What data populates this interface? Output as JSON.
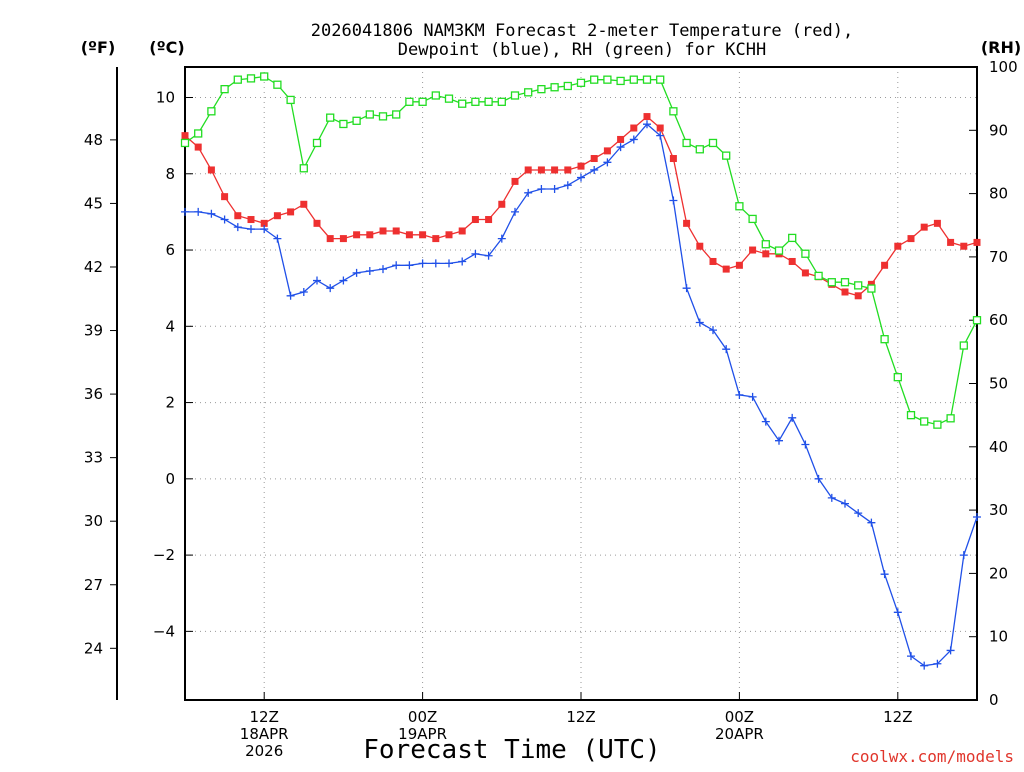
{
  "chart_data": {
    "type": "line",
    "title_lines": [
      "2026041806 NAM3KM Forecast 2-meter Temperature (red),",
      "Dewpoint (blue), RH (green) for KCHH"
    ],
    "xlabel": "Forecast Time (UTC)",
    "credit": "coolwx.com/models",
    "unit_labels": {
      "fahrenheit": "(ºF)",
      "celsius": "(ºC)",
      "rh": "(RH)"
    },
    "x_range_hours": [
      7,
      67
    ],
    "celsius_range": [
      -5.8,
      10.8
    ],
    "rh_range": [
      0,
      100
    ],
    "celsius_ticks": [
      {
        "value": 10,
        "label": "10"
      },
      {
        "value": 8,
        "label": "8"
      },
      {
        "value": 6,
        "label": "6"
      },
      {
        "value": 4,
        "label": "4"
      },
      {
        "value": 2,
        "label": "2"
      },
      {
        "value": 0,
        "label": "0"
      },
      {
        "value": -2,
        "label": "−2"
      },
      {
        "value": -4,
        "label": "−4"
      }
    ],
    "fahrenheit_ticks": [
      {
        "value": 48,
        "label": "48"
      },
      {
        "value": 45,
        "label": "45"
      },
      {
        "value": 42,
        "label": "42"
      },
      {
        "value": 39,
        "label": "39"
      },
      {
        "value": 36,
        "label": "36"
      },
      {
        "value": 33,
        "label": "33"
      },
      {
        "value": 30,
        "label": "30"
      },
      {
        "value": 27,
        "label": "27"
      },
      {
        "value": 24,
        "label": "24"
      }
    ],
    "rh_ticks": [
      {
        "value": 100,
        "label": "100"
      },
      {
        "value": 90,
        "label": "90"
      },
      {
        "value": 80,
        "label": "80"
      },
      {
        "value": 70,
        "label": "70"
      },
      {
        "value": 60,
        "label": "60"
      },
      {
        "value": 50,
        "label": "50"
      },
      {
        "value": 40,
        "label": "40"
      },
      {
        "value": 30,
        "label": "30"
      },
      {
        "value": 20,
        "label": "20"
      },
      {
        "value": 10,
        "label": "10"
      },
      {
        "value": 0,
        "label": "0"
      }
    ],
    "x_ticks": [
      {
        "hour": 13,
        "lines": [
          "12Z",
          "18APR",
          "2026"
        ]
      },
      {
        "hour": 25,
        "lines": [
          "00Z",
          "19APR"
        ]
      },
      {
        "hour": 37,
        "lines": [
          "12Z"
        ]
      },
      {
        "hour": 49,
        "lines": [
          "00Z",
          "20APR"
        ]
      },
      {
        "hour": 61,
        "lines": [
          "12Z"
        ]
      }
    ],
    "series": [
      {
        "name": "Temperature",
        "unit": "C",
        "color": "#ee3030",
        "marker": "filled-square",
        "x": [
          7,
          8,
          9,
          10,
          11,
          12,
          13,
          14,
          15,
          16,
          17,
          18,
          19,
          20,
          21,
          22,
          23,
          24,
          25,
          26,
          27,
          28,
          29,
          30,
          31,
          32,
          33,
          34,
          35,
          36,
          37,
          38,
          39,
          40,
          41,
          42,
          43,
          44,
          45,
          46,
          47,
          48,
          49,
          50,
          51,
          52,
          53,
          54,
          55,
          56,
          57,
          58,
          59,
          60,
          61,
          62,
          63,
          64,
          65,
          66,
          67
        ],
        "values": [
          9.0,
          8.7,
          8.1,
          7.4,
          6.9,
          6.8,
          6.7,
          6.9,
          7.0,
          7.2,
          6.7,
          6.3,
          6.3,
          6.4,
          6.4,
          6.5,
          6.5,
          6.4,
          6.4,
          6.3,
          6.4,
          6.5,
          6.8,
          6.8,
          7.2,
          7.8,
          8.1,
          8.1,
          8.1,
          8.1,
          8.2,
          8.4,
          8.6,
          8.9,
          9.2,
          9.5,
          9.2,
          8.4,
          6.7,
          6.1,
          5.7,
          5.5,
          5.6,
          6.0,
          5.9,
          5.9,
          5.7,
          5.4,
          5.3,
          5.1,
          4.9,
          4.8,
          5.1,
          5.6,
          6.1,
          6.3,
          6.6,
          6.7,
          6.2,
          6.1,
          6.2
        ]
      },
      {
        "name": "Dewpoint",
        "unit": "C",
        "color": "#2050e8",
        "marker": "plus",
        "x": [
          7,
          8,
          9,
          10,
          11,
          12,
          13,
          14,
          15,
          16,
          17,
          18,
          19,
          20,
          21,
          22,
          23,
          24,
          25,
          26,
          27,
          28,
          29,
          30,
          31,
          32,
          33,
          34,
          35,
          36,
          37,
          38,
          39,
          40,
          41,
          42,
          43,
          44,
          45,
          46,
          47,
          48,
          49,
          50,
          51,
          52,
          53,
          54,
          55,
          56,
          57,
          58,
          59,
          60,
          61,
          62,
          63,
          64,
          65,
          66,
          67
        ],
        "values": [
          7.0,
          7.0,
          6.95,
          6.8,
          6.6,
          6.55,
          6.55,
          6.3,
          4.8,
          4.9,
          5.2,
          5.0,
          5.2,
          5.4,
          5.45,
          5.5,
          5.6,
          5.6,
          5.65,
          5.65,
          5.65,
          5.7,
          5.9,
          5.85,
          6.3,
          7.0,
          7.5,
          7.6,
          7.6,
          7.7,
          7.9,
          8.1,
          8.3,
          8.7,
          8.9,
          9.3,
          9.0,
          7.3,
          5.0,
          4.1,
          3.9,
          3.4,
          2.2,
          2.15,
          1.5,
          1.0,
          1.6,
          0.9,
          0.0,
          -0.5,
          -0.65,
          -0.9,
          -1.15,
          -2.5,
          -3.5,
          -4.65,
          -4.9,
          -4.85,
          -4.5,
          -2.0,
          -1.0
        ]
      },
      {
        "name": "RH",
        "unit": "%",
        "color": "#22dd22",
        "marker": "open-square",
        "x": [
          7,
          8,
          9,
          10,
          11,
          12,
          13,
          14,
          15,
          16,
          17,
          18,
          19,
          20,
          21,
          22,
          23,
          24,
          25,
          26,
          27,
          28,
          29,
          30,
          31,
          32,
          33,
          34,
          35,
          36,
          37,
          38,
          39,
          40,
          41,
          42,
          43,
          44,
          45,
          46,
          47,
          48,
          49,
          50,
          51,
          52,
          53,
          54,
          55,
          56,
          57,
          58,
          59,
          60,
          61,
          62,
          63,
          64,
          65,
          66,
          67
        ],
        "values": [
          88,
          89.5,
          93,
          96.5,
          98,
          98.2,
          98.5,
          97.2,
          94.8,
          84,
          88,
          92,
          91,
          91.5,
          92.5,
          92.2,
          92.5,
          94.5,
          94.5,
          95.5,
          95,
          94.2,
          94.5,
          94.5,
          94.5,
          95.5,
          96,
          96.5,
          96.8,
          97,
          97.5,
          98,
          98,
          97.8,
          98,
          98,
          98,
          93,
          88,
          87,
          88,
          86,
          78,
          76,
          72,
          71,
          73,
          70.5,
          67,
          66,
          66,
          65.5,
          65,
          57,
          51,
          45,
          44,
          43.5,
          44.5,
          56,
          60
        ]
      }
    ]
  }
}
